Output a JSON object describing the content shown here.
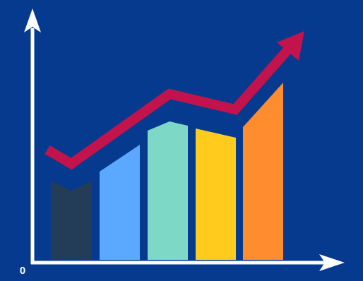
{
  "axis_origin_label": "0"
}
